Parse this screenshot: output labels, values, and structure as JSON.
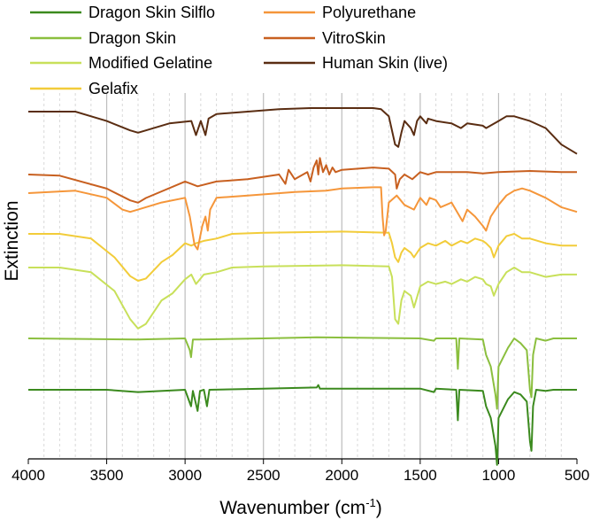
{
  "chart_data": {
    "type": "line",
    "title": "",
    "xlabel_main": "Wavenumber (cm",
    "xlabel_sup": "-1",
    "xlabel_close": ")",
    "ylabel": "Extinction",
    "xlim": [
      4000,
      500
    ],
    "x_reversed": true,
    "x_ticks": [
      4000,
      3500,
      3000,
      2500,
      2000,
      1500,
      1000,
      500
    ],
    "grid": "vertical major and minor",
    "legend_position": "top",
    "series": [
      {
        "name": "Dragon Skin Silflo",
        "color": "#3b8a1e",
        "baseline": 0.02,
        "points": [
          [
            4000,
            0.02
          ],
          [
            3500,
            0.02
          ],
          [
            3300,
            0.01
          ],
          [
            3000,
            0.02
          ],
          [
            2962,
            -0.05
          ],
          [
            2950,
            0.015
          ],
          [
            2920,
            -0.07
          ],
          [
            2905,
            0.015
          ],
          [
            2880,
            0.02
          ],
          [
            2860,
            -0.05
          ],
          [
            2845,
            0.02
          ],
          [
            2500,
            0.025
          ],
          [
            2160,
            0.03
          ],
          [
            2150,
            0.04
          ],
          [
            2140,
            0.025
          ],
          [
            1500,
            0.025
          ],
          [
            1412,
            0.01
          ],
          [
            1400,
            0.025
          ],
          [
            1270,
            0.02
          ],
          [
            1260,
            -0.11
          ],
          [
            1250,
            0.02
          ],
          [
            1100,
            0.015
          ],
          [
            1080,
            -0.05
          ],
          [
            1050,
            -0.1
          ],
          [
            1020,
            -0.22
          ],
          [
            1010,
            -0.3
          ],
          [
            1000,
            -0.1
          ],
          [
            940,
            -0.02
          ],
          [
            900,
            0.01
          ],
          [
            860,
            0.0
          ],
          [
            820,
            -0.03
          ],
          [
            800,
            -0.2
          ],
          [
            790,
            -0.24
          ],
          [
            780,
            -0.05
          ],
          [
            760,
            0.02
          ],
          [
            700,
            0.015
          ],
          [
            650,
            0.02
          ],
          [
            500,
            0.02
          ]
        ]
      },
      {
        "name": "Dragon Skin",
        "color": "#8bbf3e",
        "baseline": 0.02,
        "points": [
          [
            4000,
            0.02
          ],
          [
            3300,
            0.015
          ],
          [
            3000,
            0.02
          ],
          [
            2970,
            -0.03
          ],
          [
            2962,
            -0.06
          ],
          [
            2950,
            0.015
          ],
          [
            2900,
            0.015
          ],
          [
            2500,
            0.02
          ],
          [
            2160,
            0.025
          ],
          [
            1500,
            0.02
          ],
          [
            1412,
            0.01
          ],
          [
            1400,
            0.02
          ],
          [
            1270,
            0.02
          ],
          [
            1260,
            -0.11
          ],
          [
            1250,
            0.02
          ],
          [
            1100,
            0.015
          ],
          [
            1080,
            -0.05
          ],
          [
            1050,
            -0.1
          ],
          [
            1020,
            -0.22
          ],
          [
            1010,
            -0.28
          ],
          [
            1000,
            -0.1
          ],
          [
            940,
            -0.02
          ],
          [
            900,
            0.02
          ],
          [
            860,
            0.0
          ],
          [
            820,
            -0.03
          ],
          [
            800,
            -0.2
          ],
          [
            790,
            -0.23
          ],
          [
            780,
            -0.05
          ],
          [
            760,
            0.02
          ],
          [
            700,
            0.01
          ],
          [
            650,
            0.02
          ],
          [
            500,
            0.02
          ]
        ]
      },
      {
        "name": "Modified Gelatine",
        "color": "#c8e05a",
        "baseline": 0.02,
        "points": [
          [
            4000,
            0.02
          ],
          [
            3800,
            0.02
          ],
          [
            3600,
            0.0
          ],
          [
            3450,
            -0.08
          ],
          [
            3350,
            -0.2
          ],
          [
            3300,
            -0.24
          ],
          [
            3250,
            -0.22
          ],
          [
            3150,
            -0.12
          ],
          [
            3080,
            -0.09
          ],
          [
            3000,
            -0.03
          ],
          [
            2960,
            -0.01
          ],
          [
            2930,
            -0.05
          ],
          [
            2880,
            -0.01
          ],
          [
            2800,
            0.0
          ],
          [
            2700,
            0.02
          ],
          [
            2500,
            0.025
          ],
          [
            2000,
            0.03
          ],
          [
            1700,
            0.025
          ],
          [
            1680,
            -0.02
          ],
          [
            1660,
            -0.2
          ],
          [
            1640,
            -0.22
          ],
          [
            1620,
            -0.12
          ],
          [
            1600,
            -0.08
          ],
          [
            1560,
            -0.1
          ],
          [
            1540,
            -0.15
          ],
          [
            1500,
            -0.06
          ],
          [
            1450,
            -0.04
          ],
          [
            1400,
            -0.05
          ],
          [
            1340,
            -0.04
          ],
          [
            1300,
            -0.05
          ],
          [
            1240,
            -0.03
          ],
          [
            1200,
            -0.04
          ],
          [
            1150,
            -0.02
          ],
          [
            1100,
            -0.03
          ],
          [
            1080,
            -0.05
          ],
          [
            1050,
            -0.06
          ],
          [
            1030,
            -0.1
          ],
          [
            1000,
            -0.05
          ],
          [
            950,
            0.0
          ],
          [
            900,
            0.02
          ],
          [
            850,
            0.0
          ],
          [
            800,
            0.0
          ],
          [
            700,
            -0.02
          ],
          [
            600,
            -0.01
          ],
          [
            500,
            -0.01
          ]
        ]
      },
      {
        "name": "Gelafix",
        "color": "#f2cc3a",
        "baseline": 0.02,
        "points": [
          [
            4000,
            0.02
          ],
          [
            3800,
            0.02
          ],
          [
            3600,
            0.0
          ],
          [
            3450,
            -0.08
          ],
          [
            3350,
            -0.16
          ],
          [
            3300,
            -0.18
          ],
          [
            3250,
            -0.17
          ],
          [
            3150,
            -0.1
          ],
          [
            3080,
            -0.07
          ],
          [
            3000,
            -0.02
          ],
          [
            2960,
            -0.03
          ],
          [
            2930,
            -0.02
          ],
          [
            2880,
            -0.01
          ],
          [
            2800,
            0.0
          ],
          [
            2700,
            0.02
          ],
          [
            2500,
            0.025
          ],
          [
            2000,
            0.03
          ],
          [
            1700,
            0.025
          ],
          [
            1680,
            -0.02
          ],
          [
            1660,
            -0.08
          ],
          [
            1640,
            -0.1
          ],
          [
            1620,
            -0.06
          ],
          [
            1600,
            -0.04
          ],
          [
            1560,
            -0.06
          ],
          [
            1540,
            -0.08
          ],
          [
            1500,
            -0.04
          ],
          [
            1450,
            -0.02
          ],
          [
            1400,
            -0.03
          ],
          [
            1340,
            -0.01
          ],
          [
            1300,
            -0.03
          ],
          [
            1240,
            -0.01
          ],
          [
            1200,
            -0.02
          ],
          [
            1150,
            0.0
          ],
          [
            1100,
            -0.01
          ],
          [
            1080,
            -0.02
          ],
          [
            1050,
            -0.04
          ],
          [
            1030,
            -0.08
          ],
          [
            1000,
            -0.03
          ],
          [
            950,
            0.01
          ],
          [
            900,
            0.02
          ],
          [
            850,
            0.0
          ],
          [
            800,
            0.0
          ],
          [
            700,
            -0.02
          ],
          [
            600,
            -0.03
          ],
          [
            500,
            -0.03
          ]
        ]
      },
      {
        "name": "Polyurethane",
        "color": "#f5963a",
        "baseline": 0.02,
        "points": [
          [
            4000,
            0.02
          ],
          [
            3700,
            0.03
          ],
          [
            3500,
            0.0
          ],
          [
            3400,
            -0.05
          ],
          [
            3350,
            -0.06
          ],
          [
            3300,
            -0.05
          ],
          [
            3150,
            -0.02
          ],
          [
            3000,
            0.0
          ],
          [
            2970,
            -0.08
          ],
          [
            2940,
            -0.2
          ],
          [
            2920,
            -0.22
          ],
          [
            2890,
            -0.12
          ],
          [
            2870,
            -0.08
          ],
          [
            2855,
            -0.14
          ],
          [
            2840,
            -0.05
          ],
          [
            2800,
            0.0
          ],
          [
            2600,
            0.01
          ],
          [
            2300,
            0.025
          ],
          [
            2100,
            0.03
          ],
          [
            2000,
            0.04
          ],
          [
            1800,
            0.045
          ],
          [
            1750,
            0.045
          ],
          [
            1740,
            -0.08
          ],
          [
            1730,
            -0.16
          ],
          [
            1720,
            -0.14
          ],
          [
            1700,
            -0.02
          ],
          [
            1650,
            0.01
          ],
          [
            1600,
            -0.03
          ],
          [
            1540,
            -0.05
          ],
          [
            1500,
            0.0
          ],
          [
            1460,
            -0.03
          ],
          [
            1440,
            0.0
          ],
          [
            1400,
            -0.01
          ],
          [
            1370,
            -0.04
          ],
          [
            1300,
            -0.02
          ],
          [
            1230,
            -0.1
          ],
          [
            1200,
            -0.05
          ],
          [
            1150,
            -0.08
          ],
          [
            1100,
            -0.12
          ],
          [
            1080,
            -0.14
          ],
          [
            1050,
            -0.08
          ],
          [
            1000,
            -0.03
          ],
          [
            950,
            0.01
          ],
          [
            900,
            0.03
          ],
          [
            850,
            0.04
          ],
          [
            800,
            0.03
          ],
          [
            700,
            0.0
          ],
          [
            600,
            -0.04
          ],
          [
            500,
            -0.06
          ]
        ]
      },
      {
        "name": "VitroSkin",
        "color": "#c86020",
        "baseline": 0.02,
        "points": [
          [
            4000,
            0.02
          ],
          [
            3800,
            0.015
          ],
          [
            3500,
            -0.04
          ],
          [
            3350,
            -0.09
          ],
          [
            3300,
            -0.1
          ],
          [
            3250,
            -0.08
          ],
          [
            3000,
            -0.01
          ],
          [
            2960,
            -0.02
          ],
          [
            2920,
            -0.03
          ],
          [
            2800,
            -0.01
          ],
          [
            2600,
            0.0
          ],
          [
            2400,
            0.02
          ],
          [
            2360,
            -0.02
          ],
          [
            2340,
            0.04
          ],
          [
            2300,
            0.0
          ],
          [
            2220,
            0.03
          ],
          [
            2200,
            -0.01
          ],
          [
            2180,
            0.05
          ],
          [
            2160,
            0.08
          ],
          [
            2150,
            0.02
          ],
          [
            2140,
            0.09
          ],
          [
            2120,
            0.03
          ],
          [
            2100,
            0.06
          ],
          [
            2080,
            0.02
          ],
          [
            2060,
            0.05
          ],
          [
            2040,
            0.03
          ],
          [
            2000,
            0.04
          ],
          [
            1800,
            0.05
          ],
          [
            1700,
            0.045
          ],
          [
            1660,
            0.02
          ],
          [
            1650,
            -0.04
          ],
          [
            1630,
            0.0
          ],
          [
            1600,
            0.02
          ],
          [
            1550,
            0.0
          ],
          [
            1500,
            0.03
          ],
          [
            1450,
            0.02
          ],
          [
            1400,
            0.03
          ],
          [
            1200,
            0.03
          ],
          [
            1100,
            0.025
          ],
          [
            1000,
            0.03
          ],
          [
            800,
            0.035
          ],
          [
            600,
            0.03
          ],
          [
            500,
            0.03
          ]
        ]
      },
      {
        "name": "Human Skin (live)",
        "color": "#5a2d12",
        "baseline": 0.02,
        "points": [
          [
            4000,
            0.02
          ],
          [
            3700,
            0.02
          ],
          [
            3500,
            -0.02
          ],
          [
            3350,
            -0.06
          ],
          [
            3300,
            -0.07
          ],
          [
            3250,
            -0.06
          ],
          [
            3100,
            -0.03
          ],
          [
            2960,
            -0.02
          ],
          [
            2930,
            -0.08
          ],
          [
            2920,
            -0.06
          ],
          [
            2900,
            -0.02
          ],
          [
            2870,
            -0.08
          ],
          [
            2850,
            -0.01
          ],
          [
            2800,
            0.01
          ],
          [
            2600,
            0.02
          ],
          [
            2400,
            0.03
          ],
          [
            2200,
            0.035
          ],
          [
            2000,
            0.035
          ],
          [
            1800,
            0.035
          ],
          [
            1750,
            0.03
          ],
          [
            1700,
            0.0
          ],
          [
            1660,
            -0.12
          ],
          [
            1640,
            -0.13
          ],
          [
            1620,
            -0.07
          ],
          [
            1600,
            -0.02
          ],
          [
            1560,
            -0.05
          ],
          [
            1540,
            -0.08
          ],
          [
            1520,
            -0.02
          ],
          [
            1500,
            0.0
          ],
          [
            1460,
            -0.03
          ],
          [
            1450,
            -0.01
          ],
          [
            1400,
            -0.02
          ],
          [
            1300,
            -0.03
          ],
          [
            1240,
            -0.05
          ],
          [
            1200,
            -0.03
          ],
          [
            1100,
            -0.04
          ],
          [
            1080,
            -0.05
          ],
          [
            1000,
            -0.02
          ],
          [
            950,
            0.0
          ],
          [
            900,
            0.0
          ],
          [
            850,
            -0.01
          ],
          [
            800,
            -0.02
          ],
          [
            700,
            -0.05
          ],
          [
            600,
            -0.12
          ],
          [
            500,
            -0.16
          ]
        ]
      }
    ]
  }
}
